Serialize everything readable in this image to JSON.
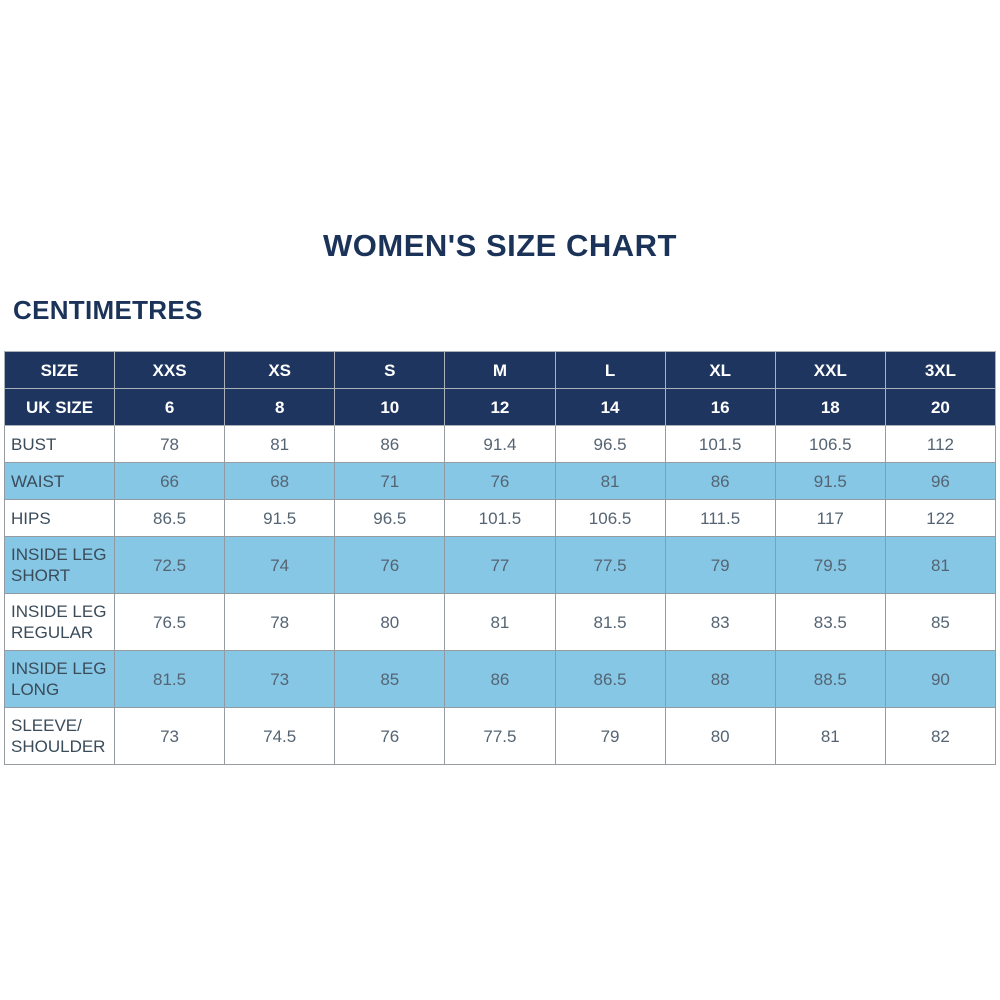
{
  "page": {
    "title": "WOMEN'S SIZE CHART",
    "subtitle": "CENTIMETRES"
  },
  "colors": {
    "header_navy": "#1e355f",
    "row_light_blue": "#86c7e5",
    "title_navy": "#1b3359"
  },
  "table": {
    "size_header": {
      "label": "SIZE",
      "values": [
        "XXS",
        "XS",
        "S",
        "M",
        "L",
        "XL",
        "XXL",
        "3XL"
      ]
    },
    "uk_size_header": {
      "label": "UK SIZE",
      "values": [
        "6",
        "8",
        "10",
        "12",
        "14",
        "16",
        "18",
        "20"
      ]
    },
    "rows": [
      {
        "label": "BUST",
        "values": [
          "78",
          "81",
          "86",
          "91.4",
          "96.5",
          "101.5",
          "106.5",
          "112"
        ]
      },
      {
        "label": "WAIST",
        "values": [
          "66",
          "68",
          "71",
          "76",
          "81",
          "86",
          "91.5",
          "96"
        ]
      },
      {
        "label": "HIPS",
        "values": [
          "86.5",
          "91.5",
          "96.5",
          "101.5",
          "106.5",
          "111.5",
          "117",
          "122"
        ]
      },
      {
        "label": "INSIDE LEG SHORT",
        "values": [
          "72.5",
          "74",
          "76",
          "77",
          "77.5",
          "79",
          "79.5",
          "81"
        ]
      },
      {
        "label": "INSIDE LEG REGULAR",
        "values": [
          "76.5",
          "78",
          "80",
          "81",
          "81.5",
          "83",
          "83.5",
          "85"
        ]
      },
      {
        "label": "INSIDE LEG LONG",
        "values": [
          "81.5",
          "73",
          "85",
          "86",
          "86.5",
          "88",
          "88.5",
          "90"
        ]
      },
      {
        "label": "SLEEVE/ SHOULDER",
        "values": [
          "73",
          "74.5",
          "76",
          "77.5",
          "79",
          "80",
          "81",
          "82"
        ]
      }
    ]
  }
}
